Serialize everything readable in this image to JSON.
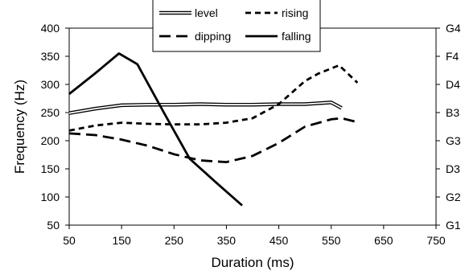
{
  "chart_data": {
    "type": "line",
    "xlabel": "Duration (ms)",
    "ylabel": "Frequency (Hz)",
    "xlim": [
      50,
      750
    ],
    "ylim": [
      50,
      400
    ],
    "x_ticks": [
      "50",
      "150",
      "250",
      "350",
      "450",
      "550",
      "650",
      "750"
    ],
    "y_ticks": [
      "50",
      "100",
      "150",
      "200",
      "250",
      "300",
      "350",
      "400"
    ],
    "y2_ticks": [
      "G1",
      "G2",
      "D3",
      "G3",
      "B3",
      "D4",
      "F4",
      "G4"
    ],
    "grid": false,
    "legend_position": "top-center",
    "series": [
      {
        "name": "level",
        "style": "double",
        "x": [
          50,
          100,
          150,
          200,
          250,
          300,
          350,
          400,
          450,
          500,
          550,
          570
        ],
        "y": [
          249,
          257,
          263,
          264,
          264,
          265,
          264,
          264,
          265,
          265,
          268,
          258
        ]
      },
      {
        "name": "rising",
        "style": "short-dash",
        "x": [
          50,
          100,
          150,
          200,
          250,
          300,
          350,
          400,
          450,
          500,
          525,
          565,
          600
        ],
        "y": [
          218,
          227,
          232,
          230,
          229,
          229,
          232,
          240,
          265,
          306,
          319,
          334,
          303
        ]
      },
      {
        "name": "dipping",
        "style": "long-dash",
        "x": [
          50,
          100,
          150,
          200,
          250,
          300,
          350,
          400,
          450,
          500,
          550,
          570,
          600
        ],
        "y": [
          213,
          210,
          202,
          191,
          176,
          165,
          162,
          173,
          196,
          225,
          238,
          240,
          233
        ]
      },
      {
        "name": "falling",
        "style": "solid",
        "x": [
          50,
          100,
          145,
          180,
          230,
          280,
          330,
          380
        ],
        "y": [
          283,
          320,
          355,
          336,
          251,
          168,
          126,
          85
        ]
      }
    ]
  }
}
